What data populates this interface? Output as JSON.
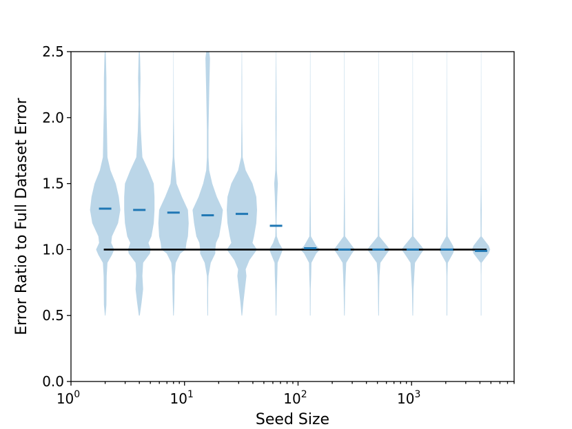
{
  "chart_data": {
    "type": "violin",
    "title": "",
    "xlabel": "Seed Size",
    "ylabel": "Error Ratio to Full Dataset Error",
    "xscale": "log",
    "xlim": [
      1,
      8000
    ],
    "ylim": [
      0.0,
      2.5
    ],
    "grid": false,
    "x_ticks": [
      {
        "value": 1,
        "base": "10",
        "exp": "0"
      },
      {
        "value": 10,
        "base": "10",
        "exp": "1"
      },
      {
        "value": 100,
        "base": "10",
        "exp": "2"
      },
      {
        "value": 1000,
        "base": "10",
        "exp": "3"
      }
    ],
    "y_ticks": [
      "0.0",
      "0.5",
      "1.0",
      "1.5",
      "2.0",
      "2.5"
    ],
    "reference_line": {
      "y": 1.0,
      "x_from": 2,
      "x_to": 4096
    },
    "violin_color": "#1f77b4",
    "reference_color": "#000000",
    "violins": [
      {
        "x": 2,
        "median": 1.31,
        "density": [
          [
            0.5,
            0.02
          ],
          [
            0.58,
            0.08
          ],
          [
            0.7,
            0.09
          ],
          [
            0.8,
            0.1
          ],
          [
            0.9,
            0.15
          ],
          [
            0.96,
            0.45
          ],
          [
            1.0,
            0.6
          ],
          [
            1.05,
            0.4
          ],
          [
            1.1,
            0.45
          ],
          [
            1.2,
            0.85
          ],
          [
            1.3,
            1.0
          ],
          [
            1.4,
            0.9
          ],
          [
            1.5,
            0.7
          ],
          [
            1.6,
            0.35
          ],
          [
            1.7,
            0.15
          ],
          [
            1.9,
            0.12
          ],
          [
            2.1,
            0.08
          ],
          [
            2.3,
            0.08
          ],
          [
            2.45,
            0.05
          ],
          [
            2.5,
            0.03
          ]
        ]
      },
      {
        "x": 4,
        "median": 1.3,
        "density": [
          [
            0.5,
            0.03
          ],
          [
            0.6,
            0.15
          ],
          [
            0.7,
            0.25
          ],
          [
            0.8,
            0.2
          ],
          [
            0.9,
            0.25
          ],
          [
            0.97,
            0.7
          ],
          [
            1.0,
            0.75
          ],
          [
            1.05,
            0.6
          ],
          [
            1.1,
            0.8
          ],
          [
            1.2,
            0.95
          ],
          [
            1.3,
            1.0
          ],
          [
            1.4,
            1.0
          ],
          [
            1.5,
            0.95
          ],
          [
            1.6,
            0.6
          ],
          [
            1.7,
            0.2
          ],
          [
            1.9,
            0.1
          ],
          [
            2.1,
            0.05
          ],
          [
            2.3,
            0.08
          ],
          [
            2.45,
            0.05
          ],
          [
            2.5,
            0.03
          ]
        ]
      },
      {
        "x": 8,
        "median": 1.28,
        "density": [
          [
            0.5,
            0.02
          ],
          [
            0.6,
            0.05
          ],
          [
            0.7,
            0.07
          ],
          [
            0.8,
            0.08
          ],
          [
            0.9,
            0.15
          ],
          [
            0.97,
            0.45
          ],
          [
            1.0,
            0.8
          ],
          [
            1.05,
            0.85
          ],
          [
            1.1,
            0.95
          ],
          [
            1.2,
            1.0
          ],
          [
            1.3,
            0.95
          ],
          [
            1.4,
            0.55
          ],
          [
            1.5,
            0.2
          ],
          [
            1.7,
            0.05
          ],
          [
            2.0,
            0.02
          ],
          [
            2.5,
            0.01
          ]
        ]
      },
      {
        "x": 16,
        "median": 1.26,
        "density": [
          [
            0.5,
            0.02
          ],
          [
            0.6,
            0.03
          ],
          [
            0.7,
            0.03
          ],
          [
            0.8,
            0.05
          ],
          [
            0.9,
            0.2
          ],
          [
            0.97,
            0.5
          ],
          [
            1.0,
            0.5
          ],
          [
            1.05,
            0.55
          ],
          [
            1.1,
            0.75
          ],
          [
            1.2,
            0.9
          ],
          [
            1.3,
            1.0
          ],
          [
            1.4,
            0.6
          ],
          [
            1.5,
            0.3
          ],
          [
            1.6,
            0.1
          ],
          [
            1.7,
            0.05
          ],
          [
            1.9,
            0.05
          ],
          [
            2.2,
            0.1
          ],
          [
            2.45,
            0.15
          ],
          [
            2.5,
            0.1
          ]
        ]
      },
      {
        "x": 32,
        "median": 1.27,
        "density": [
          [
            0.5,
            0.02
          ],
          [
            0.6,
            0.1
          ],
          [
            0.7,
            0.2
          ],
          [
            0.8,
            0.3
          ],
          [
            0.85,
            0.25
          ],
          [
            0.92,
            0.5
          ],
          [
            1.0,
            1.0
          ],
          [
            1.05,
            0.7
          ],
          [
            1.1,
            0.8
          ],
          [
            1.2,
            0.95
          ],
          [
            1.3,
            1.0
          ],
          [
            1.4,
            0.95
          ],
          [
            1.5,
            0.7
          ],
          [
            1.6,
            0.25
          ],
          [
            1.7,
            0.05
          ],
          [
            2.0,
            0.02
          ],
          [
            2.3,
            0.02
          ],
          [
            2.5,
            0.01
          ]
        ]
      },
      {
        "x": 64,
        "median": 1.18,
        "density": [
          [
            0.5,
            0.02
          ],
          [
            0.7,
            0.05
          ],
          [
            0.8,
            0.08
          ],
          [
            0.9,
            0.1
          ],
          [
            1.0,
            0.45
          ],
          [
            1.05,
            0.2
          ],
          [
            1.1,
            0.05
          ],
          [
            1.2,
            0.03
          ],
          [
            1.4,
            0.08
          ],
          [
            1.5,
            0.12
          ],
          [
            1.6,
            0.05
          ],
          [
            1.8,
            0.03
          ],
          [
            2.0,
            0.04
          ],
          [
            2.5,
            0.01
          ]
        ]
      },
      {
        "x": 128,
        "median": 1.01,
        "density": [
          [
            0.5,
            0.02
          ],
          [
            0.7,
            0.03
          ],
          [
            0.8,
            0.06
          ],
          [
            0.9,
            0.08
          ],
          [
            0.97,
            0.4
          ],
          [
            1.0,
            0.65
          ],
          [
            1.03,
            0.4
          ],
          [
            1.1,
            0.05
          ],
          [
            1.5,
            0.02
          ],
          [
            2.5,
            0.01
          ]
        ]
      },
      {
        "x": 256,
        "median": 1.0,
        "density": [
          [
            0.5,
            0.02
          ],
          [
            0.7,
            0.05
          ],
          [
            0.8,
            0.08
          ],
          [
            0.9,
            0.12
          ],
          [
            0.97,
            0.5
          ],
          [
            1.0,
            0.7
          ],
          [
            1.03,
            0.5
          ],
          [
            1.1,
            0.05
          ],
          [
            1.5,
            0.02
          ],
          [
            2.5,
            0.01
          ]
        ]
      },
      {
        "x": 512,
        "median": 1.0,
        "density": [
          [
            0.5,
            0.02
          ],
          [
            0.7,
            0.04
          ],
          [
            0.8,
            0.06
          ],
          [
            0.9,
            0.12
          ],
          [
            0.97,
            0.55
          ],
          [
            1.0,
            0.75
          ],
          [
            1.03,
            0.55
          ],
          [
            1.1,
            0.05
          ],
          [
            1.5,
            0.02
          ],
          [
            2.5,
            0.01
          ]
        ]
      },
      {
        "x": 1024,
        "median": 1.0,
        "density": [
          [
            0.5,
            0.02
          ],
          [
            0.7,
            0.05
          ],
          [
            0.8,
            0.1
          ],
          [
            0.9,
            0.15
          ],
          [
            0.97,
            0.55
          ],
          [
            1.0,
            0.75
          ],
          [
            1.03,
            0.55
          ],
          [
            1.1,
            0.05
          ],
          [
            1.5,
            0.02
          ],
          [
            2.5,
            0.01
          ]
        ]
      },
      {
        "x": 2048,
        "median": 1.0,
        "density": [
          [
            0.5,
            0.02
          ],
          [
            0.8,
            0.03
          ],
          [
            0.9,
            0.06
          ],
          [
            0.97,
            0.4
          ],
          [
            1.0,
            0.5
          ],
          [
            1.03,
            0.4
          ],
          [
            1.1,
            0.05
          ],
          [
            1.5,
            0.02
          ],
          [
            2.5,
            0.01
          ]
        ]
      },
      {
        "x": 4096,
        "median": 0.99,
        "density": [
          [
            0.5,
            0.02
          ],
          [
            0.8,
            0.02
          ],
          [
            0.9,
            0.03
          ],
          [
            0.97,
            0.5
          ],
          [
            1.0,
            0.6
          ],
          [
            1.03,
            0.5
          ],
          [
            1.1,
            0.03
          ],
          [
            1.3,
            0.04
          ],
          [
            1.5,
            0.02
          ],
          [
            2.5,
            0.01
          ]
        ]
      }
    ]
  }
}
